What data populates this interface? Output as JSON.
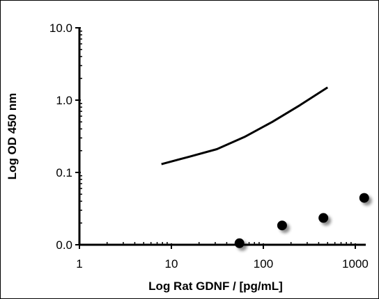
{
  "chart_data": {
    "type": "scatter",
    "xlabel": "Log Rat GDNF / [pg/mL]",
    "ylabel": "Log OD 450 nm",
    "xscale": "log",
    "yscale": "log",
    "xlim": [
      1,
      1300
    ],
    "ylim": [
      0.01,
      10
    ],
    "x_ticks": [
      1,
      10,
      100,
      1000
    ],
    "x_tick_labels": [
      "1",
      "10",
      "100",
      "1000"
    ],
    "y_ticks": [
      0.01,
      0.1,
      1,
      10
    ],
    "y_tick_labels": [
      "0.0",
      "0.1",
      "1.0",
      "10.0"
    ],
    "grid": false,
    "series": [
      {
        "kind": "line",
        "color": "#000000",
        "x": [
          7.8,
          15.6,
          31.25,
          62.5,
          125,
          250,
          500
        ],
        "y": [
          0.13,
          0.165,
          0.21,
          0.31,
          0.5,
          0.85,
          1.5
        ]
      },
      {
        "kind": "points",
        "color": "#000000",
        "x": [
          55,
          160,
          450,
          1250
        ],
        "y": [
          0.0105,
          0.0185,
          0.0235,
          0.0445
        ]
      }
    ]
  }
}
